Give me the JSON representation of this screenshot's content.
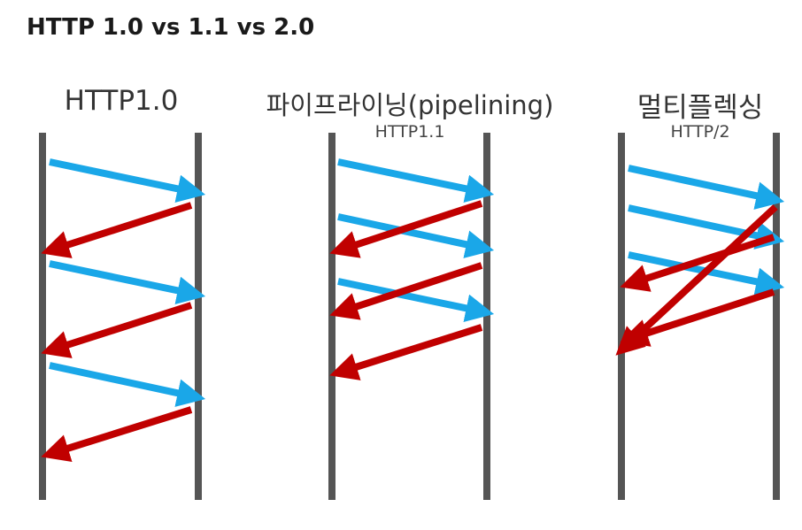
{
  "title": "HTTP 1.0 vs 1.1 vs 2.0",
  "colors": {
    "timeline": "#555555",
    "request": "#1aa7e8",
    "response": "#c00000"
  },
  "panels": [
    {
      "id": "http10",
      "title": "HTTP1.0",
      "subtitle": "",
      "arrows": [
        {
          "type": "request"
        },
        {
          "type": "response"
        },
        {
          "type": "request"
        },
        {
          "type": "response"
        },
        {
          "type": "request"
        },
        {
          "type": "response"
        }
      ]
    },
    {
      "id": "pipelining",
      "title": "파이프라이닝(pipelining)",
      "subtitle": "HTTP1.1",
      "arrows": [
        {
          "type": "request"
        },
        {
          "type": "request"
        },
        {
          "type": "request"
        },
        {
          "type": "response"
        },
        {
          "type": "response"
        },
        {
          "type": "response"
        }
      ]
    },
    {
      "id": "multiplexing",
      "title": "멀티플렉싱",
      "subtitle": "HTTP/2",
      "arrows": [
        {
          "type": "request"
        },
        {
          "type": "request"
        },
        {
          "type": "request"
        },
        {
          "type": "response"
        },
        {
          "type": "response"
        },
        {
          "type": "response"
        }
      ]
    }
  ]
}
